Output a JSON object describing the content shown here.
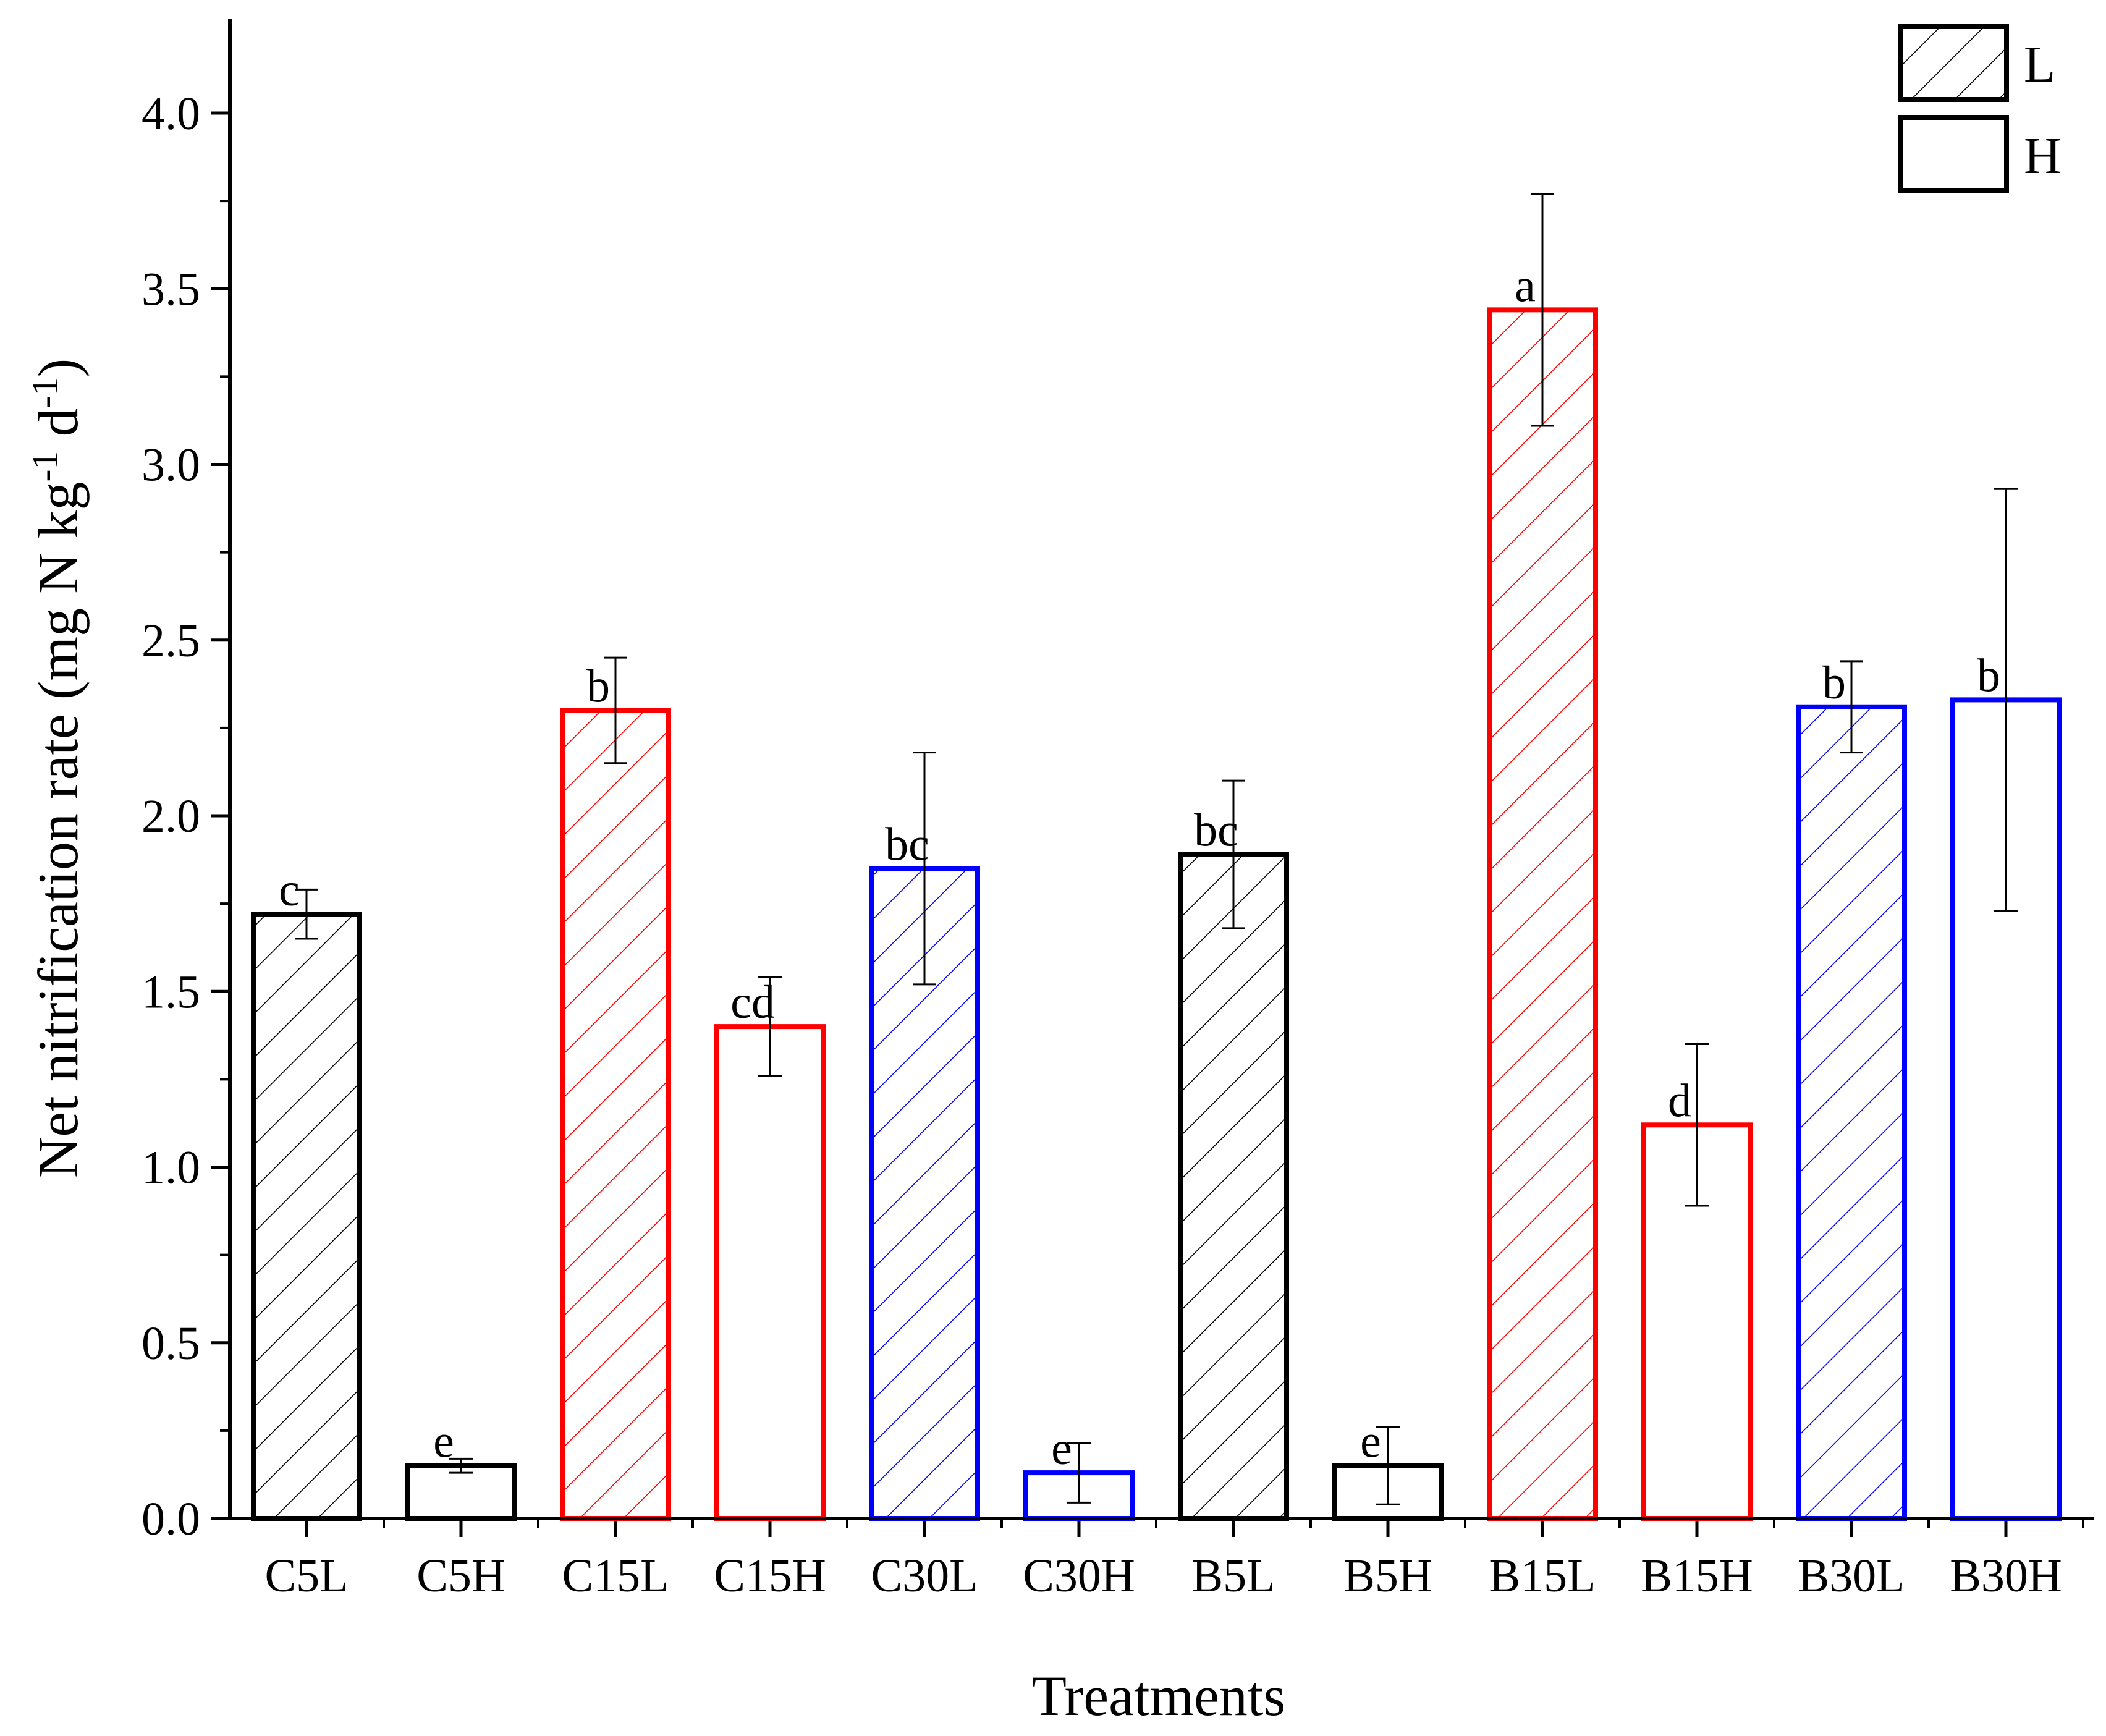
{
  "chart_data": {
    "type": "bar",
    "title": "",
    "xlabel": "Treatments",
    "ylabel_parts": [
      "Net nitrification rate (mg N kg",
      "-1",
      " d",
      "-1",
      ")"
    ],
    "ylim": [
      0,
      4.25
    ],
    "yticks": [
      0.0,
      0.5,
      1.0,
      1.5,
      2.0,
      2.5,
      3.0,
      3.5,
      4.0
    ],
    "ytick_labels": [
      "0.0",
      "0.5",
      "1.0",
      "1.5",
      "2.0",
      "2.5",
      "3.0",
      "3.5",
      "4.0"
    ],
    "categories": [
      "C5L",
      "C5H",
      "C15L",
      "C15H",
      "C30L",
      "C30H",
      "B5L",
      "B5H",
      "B15L",
      "B15H",
      "B30L",
      "B30H"
    ],
    "values": [
      1.72,
      0.15,
      2.3,
      1.4,
      1.85,
      0.13,
      1.89,
      0.15,
      3.44,
      1.12,
      2.31,
      2.33
    ],
    "errors": [
      0.07,
      0.02,
      0.15,
      0.14,
      0.33,
      0.085,
      0.21,
      0.11,
      0.33,
      0.23,
      0.13,
      0.6
    ],
    "letters": [
      "c",
      "e",
      "b",
      "cd",
      "bc",
      "e",
      "bc",
      "e",
      "a",
      "d",
      "b",
      "b"
    ],
    "colors": [
      "#000000",
      "#000000",
      "#ff0000",
      "#ff0000",
      "#0000ff",
      "#0000ff",
      "#000000",
      "#000000",
      "#ff0000",
      "#ff0000",
      "#0000ff",
      "#0000ff"
    ],
    "hatched": [
      true,
      false,
      true,
      false,
      true,
      false,
      true,
      false,
      true,
      false,
      true,
      false
    ],
    "legend": {
      "position": "top-right",
      "entries": [
        {
          "label": "L",
          "hatched": true
        },
        {
          "label": "H",
          "hatched": false
        }
      ]
    }
  }
}
